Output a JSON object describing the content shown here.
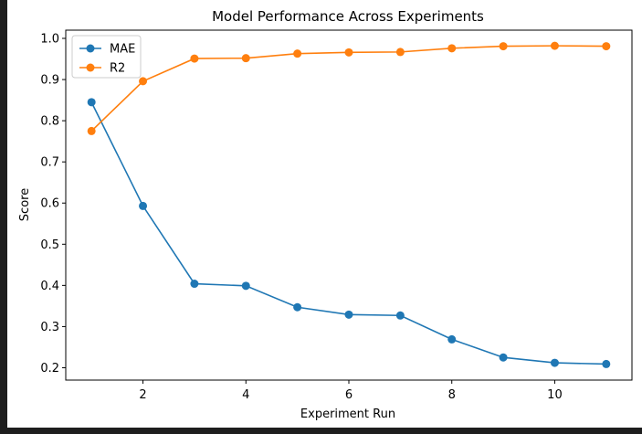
{
  "chart_data": {
    "type": "line",
    "title": "Model Performance Across Experiments",
    "xlabel": "Experiment Run",
    "ylabel": "Score",
    "xlim": [
      0.5,
      11.5
    ],
    "ylim": [
      0.17,
      1.02
    ],
    "x_ticks": [
      {
        "value": 2,
        "label": "2"
      },
      {
        "value": 4,
        "label": "4"
      },
      {
        "value": 6,
        "label": "6"
      },
      {
        "value": 8,
        "label": "8"
      },
      {
        "value": 10,
        "label": "10"
      }
    ],
    "y_ticks": [
      {
        "value": 0.2,
        "label": "0.2"
      },
      {
        "value": 0.3,
        "label": "0.3"
      },
      {
        "value": 0.4,
        "label": "0.4"
      },
      {
        "value": 0.5,
        "label": "0.5"
      },
      {
        "value": 0.6,
        "label": "0.6"
      },
      {
        "value": 0.7,
        "label": "0.7"
      },
      {
        "value": 0.8,
        "label": "0.8"
      },
      {
        "value": 0.9,
        "label": "0.9"
      },
      {
        "value": 1.0,
        "label": "1.0"
      }
    ],
    "x": [
      1,
      2,
      3,
      4,
      5,
      6,
      7,
      8,
      9,
      10,
      11
    ],
    "series": [
      {
        "name": "MAE",
        "color": "#1f77b4",
        "marker": "circle",
        "values": [
          0.845,
          0.593,
          0.404,
          0.399,
          0.347,
          0.329,
          0.327,
          0.269,
          0.225,
          0.212,
          0.209
        ]
      },
      {
        "name": "R2",
        "color": "#ff7f0e",
        "marker": "circle",
        "values": [
          0.775,
          0.896,
          0.951,
          0.952,
          0.963,
          0.966,
          0.967,
          0.976,
          0.981,
          0.982,
          0.981
        ]
      }
    ],
    "grid": false,
    "legend_position": "upper-left"
  }
}
